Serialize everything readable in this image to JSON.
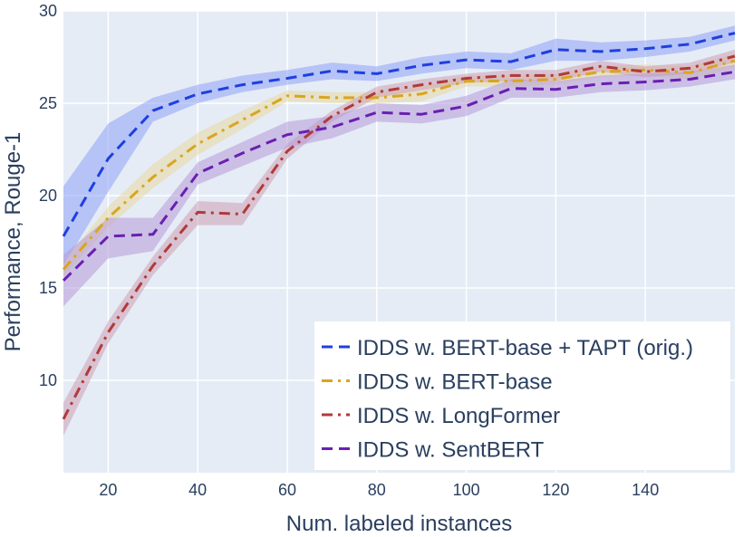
{
  "chart_data": {
    "type": "line",
    "title": "",
    "xlabel": "Num. labeled instances",
    "ylabel": "Performance, Rouge-1",
    "xlim": [
      10,
      160
    ],
    "ylim": [
      5,
      30
    ],
    "xticks": [
      20,
      40,
      60,
      80,
      100,
      120,
      140
    ],
    "yticks": [
      10,
      15,
      20,
      25,
      30
    ],
    "x_tick_labels": [
      "20",
      "40",
      "60",
      "80",
      "100",
      "120",
      "140"
    ],
    "y_tick_labels": [
      "10",
      "15",
      "20",
      "25",
      "30"
    ],
    "grid": true,
    "legend_position": "bottom-right",
    "x": [
      10,
      20,
      30,
      40,
      50,
      60,
      70,
      80,
      90,
      100,
      110,
      120,
      130,
      140,
      150,
      160
    ],
    "series": [
      {
        "name": "IDDS w. BERT-base + TAPT (orig.)",
        "color": "#1f3fe0",
        "band_color": "#8fa3f5",
        "dash": "dash",
        "values": [
          17.8,
          22.0,
          24.6,
          25.5,
          26.0,
          26.35,
          26.75,
          26.6,
          27.05,
          27.35,
          27.25,
          27.9,
          27.8,
          27.95,
          28.2,
          28.8
        ],
        "lower": [
          16.2,
          20.2,
          24.0,
          25.0,
          25.6,
          26.0,
          26.3,
          26.2,
          26.6,
          26.9,
          26.8,
          27.3,
          27.3,
          27.5,
          27.8,
          28.4
        ],
        "upper": [
          20.5,
          23.9,
          25.3,
          26.0,
          26.5,
          26.8,
          27.2,
          27.0,
          27.5,
          27.8,
          27.7,
          28.5,
          28.3,
          28.4,
          28.6,
          29.2
        ]
      },
      {
        "name": "IDDS w. BERT-base",
        "color": "#d9a520",
        "band_color": "#e8d9a0",
        "dash": "dashdot",
        "values": [
          16.0,
          18.8,
          21.0,
          22.8,
          24.1,
          25.4,
          25.3,
          25.3,
          25.5,
          26.2,
          26.2,
          26.3,
          26.7,
          26.8,
          26.65,
          27.3
        ],
        "lower": [
          15.6,
          18.3,
          20.4,
          22.2,
          23.6,
          25.1,
          25.0,
          25.0,
          25.1,
          25.9,
          25.9,
          26.0,
          26.4,
          26.5,
          26.3,
          26.9
        ],
        "upper": [
          16.4,
          19.4,
          21.7,
          23.4,
          24.6,
          25.7,
          25.6,
          25.6,
          25.9,
          26.5,
          26.5,
          26.6,
          27.0,
          27.1,
          27.0,
          27.7
        ]
      },
      {
        "name": "IDDS w. LongFormer",
        "color": "#b03a3a",
        "band_color": "#cda0b5",
        "dash": "dashdot",
        "values": [
          7.9,
          12.6,
          16.2,
          19.1,
          19.0,
          22.4,
          24.3,
          25.6,
          26.0,
          26.35,
          26.5,
          26.5,
          27.0,
          26.7,
          26.9,
          27.55
        ],
        "lower": [
          7.0,
          12.0,
          15.7,
          18.4,
          18.4,
          22.0,
          24.0,
          25.3,
          25.7,
          26.1,
          26.2,
          26.2,
          26.7,
          26.4,
          26.6,
          27.2
        ],
        "upper": [
          8.8,
          13.2,
          16.7,
          19.7,
          19.6,
          22.8,
          24.6,
          25.9,
          26.3,
          26.6,
          26.8,
          26.8,
          27.3,
          27.0,
          27.2,
          27.9
        ]
      },
      {
        "name": "IDDS w. SentBERT",
        "color": "#6a1fb0",
        "band_color": "#b79ad8",
        "dash": "dash",
        "values": [
          15.4,
          17.8,
          17.9,
          21.2,
          22.3,
          23.3,
          23.7,
          24.5,
          24.4,
          24.85,
          25.8,
          25.75,
          26.05,
          26.15,
          26.3,
          26.7
        ],
        "lower": [
          14.0,
          16.6,
          17.0,
          20.6,
          21.6,
          22.6,
          23.1,
          24.0,
          23.9,
          24.3,
          25.3,
          25.3,
          25.6,
          25.7,
          25.9,
          26.3
        ],
        "upper": [
          16.8,
          18.8,
          18.8,
          21.8,
          22.9,
          24.0,
          24.3,
          25.0,
          24.9,
          25.4,
          26.3,
          26.2,
          26.5,
          26.6,
          26.7,
          27.1
        ]
      }
    ]
  }
}
